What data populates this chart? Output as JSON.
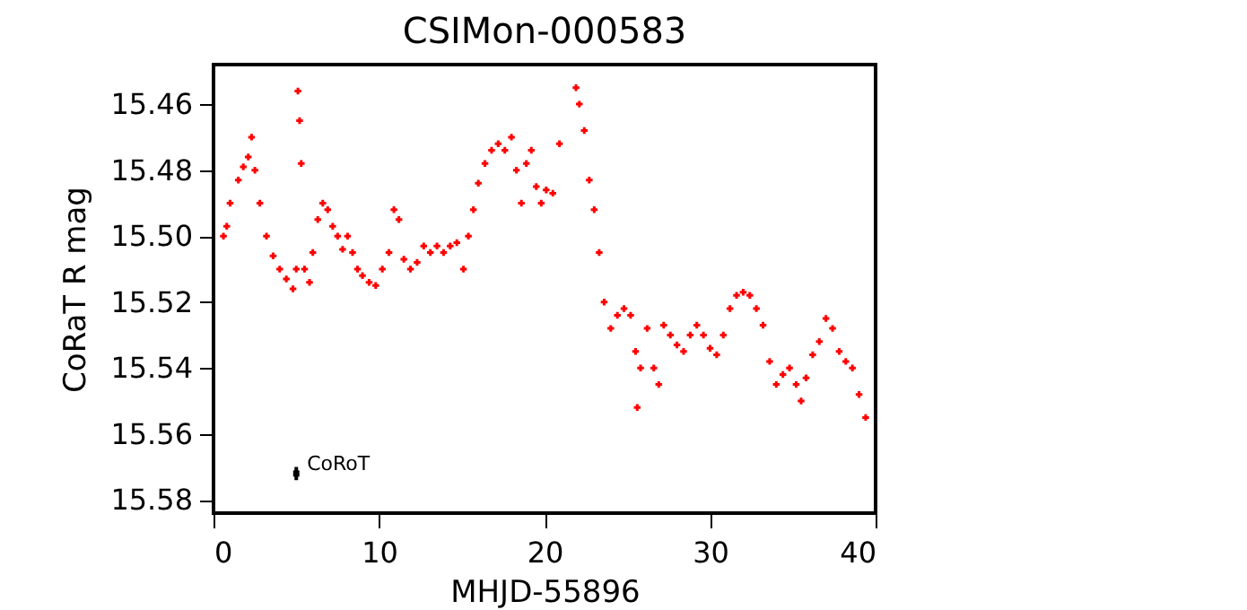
{
  "chart_data": {
    "type": "scatter",
    "title": "CSIMon-000583",
    "xlabel": "MHJD-55896",
    "ylabel": "CoRaT R mag",
    "xlim": [
      0,
      40
    ],
    "xticks": [
      0,
      10,
      20,
      30,
      40
    ],
    "ylim": [
      15.584,
      15.448
    ],
    "yticks": [
      {
        "value": 15.46,
        "label": "15.46"
      },
      {
        "value": 15.48,
        "label": "15.48"
      },
      {
        "value": 15.5,
        "label": "15.50"
      },
      {
        "value": 15.52,
        "label": "15.52"
      },
      {
        "value": 15.54,
        "label": "15.54"
      },
      {
        "value": 15.56,
        "label": "15.56"
      },
      {
        "value": 15.58,
        "label": "15.58"
      }
    ],
    "grid": false,
    "marker": "cross",
    "series": [
      {
        "color": "#ff0000",
        "x": [
          0.6,
          0.8,
          1.0,
          1.5,
          1.8,
          2.1,
          2.3,
          2.5,
          2.8,
          3.2,
          3.6,
          4.0,
          4.4,
          4.8,
          5.0,
          5.1,
          5.2,
          5.3,
          5.5,
          5.8,
          6.0,
          6.3,
          6.6,
          6.9,
          7.2,
          7.5,
          7.8,
          8.1,
          8.4,
          8.7,
          9.0,
          9.4,
          9.8,
          10.2,
          10.6,
          10.9,
          11.2,
          11.5,
          11.9,
          12.3,
          12.7,
          13.1,
          13.5,
          13.9,
          14.3,
          14.7,
          15.1,
          15.4,
          15.7,
          16.0,
          16.4,
          16.8,
          17.2,
          17.6,
          18.0,
          18.3,
          18.6,
          18.9,
          19.2,
          19.5,
          19.8,
          20.1,
          20.5,
          20.9,
          21.9,
          22.1,
          22.4,
          22.7,
          23.0,
          23.3,
          23.6,
          24.0,
          24.4,
          24.8,
          25.2,
          25.5,
          25.6,
          25.8,
          26.2,
          26.6,
          26.9,
          27.2,
          27.6,
          28.0,
          28.4,
          28.8,
          29.2,
          29.6,
          30.0,
          30.4,
          30.8,
          31.2,
          31.6,
          32.0,
          32.4,
          32.8,
          33.2,
          33.6,
          34.0,
          34.4,
          34.8,
          35.2,
          35.5,
          35.8,
          36.2,
          36.6,
          37.0,
          37.4,
          37.8,
          38.2,
          38.6,
          39.0,
          39.4
        ],
        "values": [
          15.5,
          15.497,
          15.49,
          15.483,
          15.479,
          15.476,
          15.47,
          15.48,
          15.49,
          15.5,
          15.506,
          15.51,
          15.513,
          15.516,
          15.51,
          15.456,
          15.465,
          15.478,
          15.51,
          15.514,
          15.505,
          15.495,
          15.49,
          15.492,
          15.497,
          15.5,
          15.504,
          15.5,
          15.505,
          15.51,
          15.512,
          15.514,
          15.515,
          15.51,
          15.505,
          15.492,
          15.495,
          15.507,
          15.51,
          15.508,
          15.503,
          15.505,
          15.503,
          15.505,
          15.503,
          15.502,
          15.51,
          15.5,
          15.492,
          15.484,
          15.478,
          15.474,
          15.472,
          15.474,
          15.47,
          15.48,
          15.49,
          15.478,
          15.474,
          15.485,
          15.49,
          15.486,
          15.487,
          15.472,
          15.455,
          15.46,
          15.468,
          15.483,
          15.492,
          15.505,
          15.52,
          15.528,
          15.524,
          15.522,
          15.524,
          15.535,
          15.552,
          15.54,
          15.528,
          15.54,
          15.545,
          15.527,
          15.53,
          15.533,
          15.535,
          15.53,
          15.527,
          15.53,
          15.534,
          15.536,
          15.53,
          15.522,
          15.518,
          15.517,
          15.518,
          15.522,
          15.527,
          15.538,
          15.545,
          15.542,
          15.54,
          15.545,
          15.55,
          15.543,
          15.536,
          15.532,
          15.525,
          15.528,
          15.535,
          15.538,
          15.54,
          15.548,
          15.555
        ]
      },
      {
        "name": "CoRoT",
        "color": "#000000",
        "marker": "square",
        "x": [
          5
        ],
        "values": [
          15.572
        ],
        "errors": [
          0.002
        ]
      }
    ]
  }
}
